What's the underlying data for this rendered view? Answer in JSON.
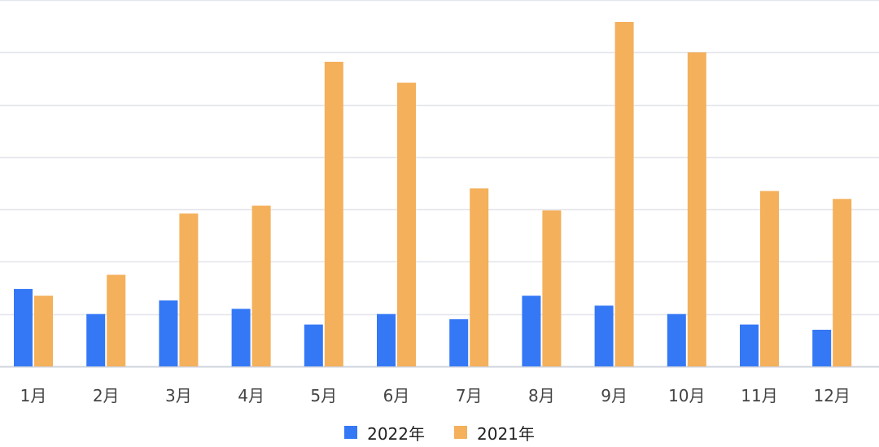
{
  "chart_data": {
    "type": "bar",
    "categories": [
      "1月",
      "2月",
      "3月",
      "4月",
      "5月",
      "6月",
      "7月",
      "8月",
      "9月",
      "10月",
      "11月",
      "12月"
    ],
    "series": [
      {
        "name": "2022年",
        "color": "#3478f6",
        "values": [
          1.48,
          1.0,
          1.26,
          1.1,
          0.8,
          1.0,
          0.9,
          1.35,
          1.16,
          1.0,
          0.8,
          0.7
        ]
      },
      {
        "name": "2021年",
        "color": "#f4b05b",
        "values": [
          1.35,
          1.75,
          2.92,
          3.07,
          5.82,
          5.42,
          3.4,
          2.98,
          6.58,
          6.0,
          3.35,
          3.2
        ]
      }
    ],
    "ylim": [
      0,
      7
    ],
    "grid": true,
    "legend_position": "bottom-center",
    "xlabel": "",
    "ylabel": ""
  }
}
